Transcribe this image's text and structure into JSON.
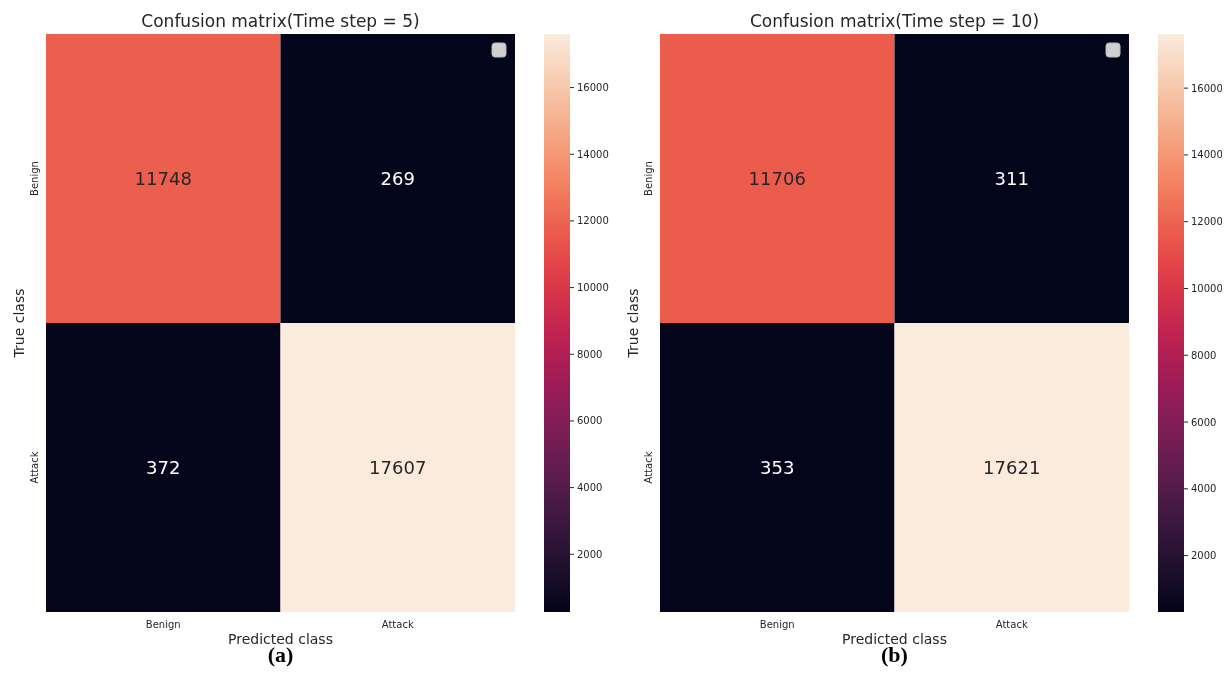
{
  "chart_data": [
    {
      "type": "heatmap",
      "title": "Confusion matrix(Time step = 5)",
      "xlabel": "Predicted class",
      "ylabel": "True class",
      "categories": [
        "Benign",
        "Attack"
      ],
      "y_categories": [
        "Benign",
        "Attack"
      ],
      "cells": [
        [
          11748,
          269
        ],
        [
          372,
          17607
        ]
      ],
      "clim": [
        269,
        17607
      ],
      "cticks": [
        2000,
        4000,
        6000,
        8000,
        10000,
        12000,
        14000,
        16000
      ],
      "data_labels": true,
      "annotations": [
        "(a)"
      ]
    },
    {
      "type": "heatmap",
      "title": "Confusion matrix(Time step = 10)",
      "xlabel": "Predicted class",
      "ylabel": "True class",
      "categories": [
        "Benign",
        "Attack"
      ],
      "y_categories": [
        "Benign",
        "Attack"
      ],
      "cells": [
        [
          11706,
          311
        ],
        [
          353,
          17621
        ]
      ],
      "clim": [
        311,
        17621
      ],
      "cticks": [
        2000,
        4000,
        6000,
        8000,
        10000,
        12000,
        14000,
        16000
      ],
      "data_labels": true,
      "annotations": [
        "(b)"
      ]
    }
  ]
}
